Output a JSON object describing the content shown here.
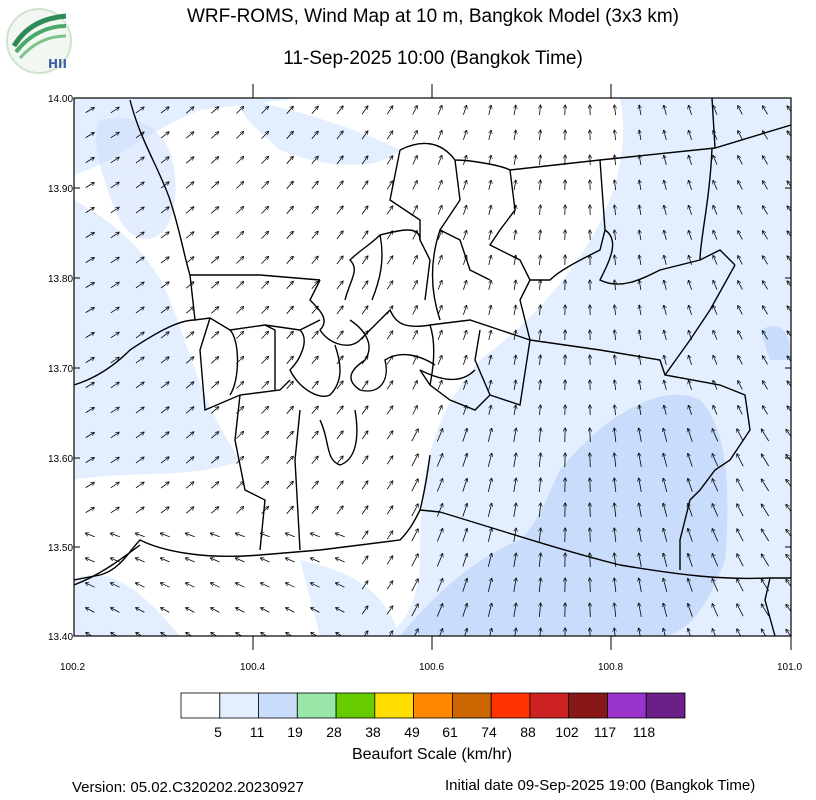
{
  "header": {
    "title": "WRF-ROMS, Wind Map at 10 m, Bangkok Model (3x3 km)",
    "subtitle": "11-Sep-2025 10:00 (Bangkok Time)",
    "logo_text": "HII"
  },
  "map": {
    "lat_ticks": [
      "14.00",
      "13.90",
      "13.80",
      "13.70",
      "13.60",
      "13.50",
      "13.40"
    ],
    "lon_ticks": [
      "100.2",
      "100.4",
      "100.6",
      "100.8",
      "101.0"
    ],
    "lat_range": [
      13.4,
      14.0
    ],
    "lon_range": [
      100.2,
      101.0
    ],
    "field_colors": {
      "white": "#ffffff",
      "light": "#e3efff",
      "medium": "#c9dcfb"
    },
    "wind_direction": "mostly from south / southwest, turning from southeast in the east"
  },
  "legend": {
    "title": "Beaufort Scale (km/hr)",
    "labels": [
      "5",
      "11",
      "19",
      "28",
      "38",
      "49",
      "61",
      "74",
      "88",
      "102",
      "117",
      "118"
    ],
    "colors": [
      "#ffffff",
      "#e3efff",
      "#c9dcfb",
      "#98e6a8",
      "#66cc00",
      "#ffdd00",
      "#ff8800",
      "#cc6600",
      "#ff3300",
      "#cc2222",
      "#881818",
      "#9933cc",
      "#6b1f88"
    ]
  },
  "footer": {
    "version": "Version: 05.02.C320202.20230927",
    "initial_date": "Initial date 09-Sep-2025 19:00 (Bangkok Time)"
  }
}
